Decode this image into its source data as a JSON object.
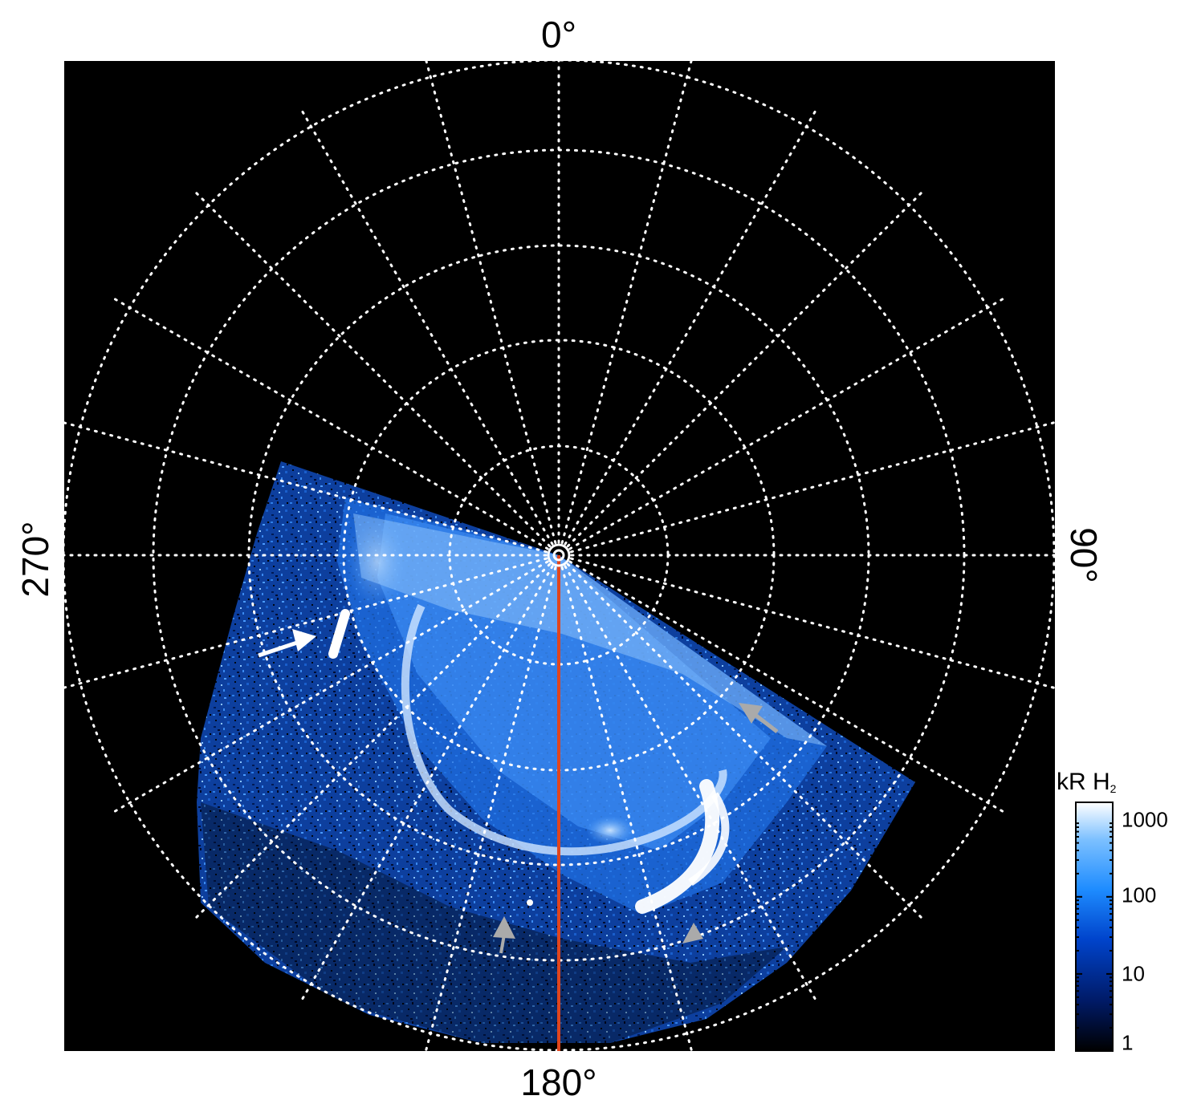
{
  "labels": {
    "top": "0°",
    "bottom": "180°",
    "left": "270°",
    "right": "90°"
  },
  "colorbar": {
    "title_main": "kR H",
    "title_sub": "2",
    "ticks": [
      "1000",
      "100",
      "10",
      "1"
    ],
    "scale": "log",
    "range": [
      1,
      1000
    ],
    "colors": [
      "#000000",
      "#001a66",
      "#0044cc",
      "#1e8cff",
      "#7cc0ff",
      "#ffffff"
    ]
  },
  "grid": {
    "style": "dotted",
    "color": "#ffffff",
    "meridian_count": 24
  },
  "colors": {
    "background": "#000000",
    "aurora": "#1e78e6",
    "reference_line": "#e0451e"
  },
  "annotations": {
    "arrows": [
      {
        "name": "white-arrow-left",
        "color": "#ffffff"
      },
      {
        "name": "gray-arrow-right",
        "color": "#aaaaaa"
      },
      {
        "name": "gray-arrow-bottom",
        "color": "#aaaaaa"
      },
      {
        "name": "gray-arrow-bottom-right",
        "color": "#aaaaaa"
      }
    ]
  }
}
